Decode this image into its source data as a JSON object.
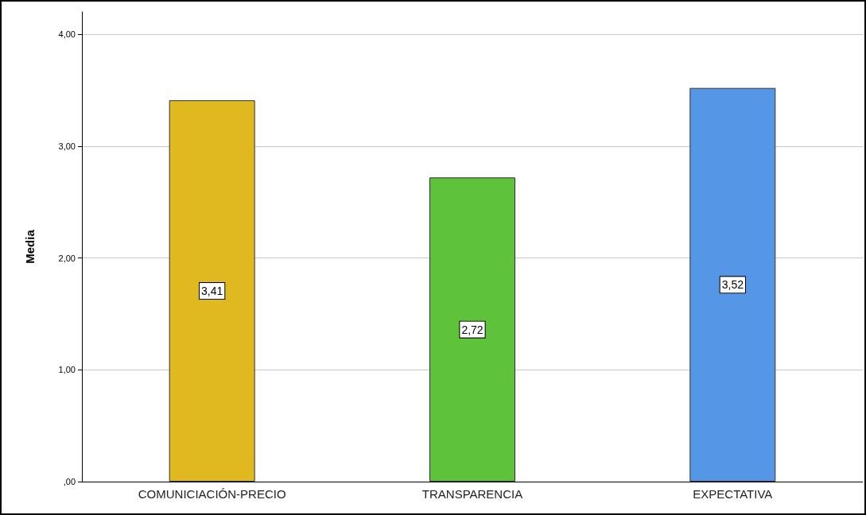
{
  "chart_data": {
    "type": "bar",
    "ylabel": "Media",
    "categories": [
      "COMUNICIACIÓN-PRECIO",
      "TRANSPARENCIA",
      "EXPECTATIVA"
    ],
    "values": [
      3.41,
      2.72,
      3.52
    ],
    "colors": [
      "#dfb91f",
      "#5ec23a",
      "#5596e6"
    ],
    "value_labels": [
      "3,41",
      "2,72",
      "3,52"
    ],
    "ylim": [
      0,
      4.2
    ],
    "yticks": [
      {
        "value": 0,
        "label": ",00"
      },
      {
        "value": 1,
        "label": "1,00"
      },
      {
        "value": 2,
        "label": "2,00"
      },
      {
        "value": 3,
        "label": "3,00"
      },
      {
        "value": 4,
        "label": "4,00"
      }
    ],
    "grid": "y"
  }
}
